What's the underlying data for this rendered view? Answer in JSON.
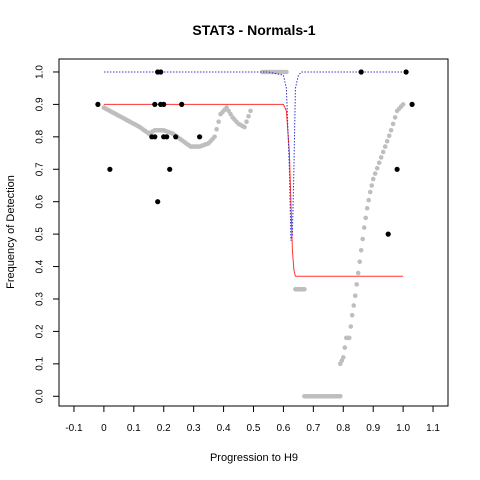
{
  "chart_data": {
    "type": "scatter",
    "title": "STAT3 - Normals-1",
    "xlabel": "Progression to H9",
    "ylabel": "Frequency of Detection",
    "xlim": [
      -0.15,
      1.15
    ],
    "ylim": [
      -0.03,
      1.04
    ],
    "x_ticks": [
      "-0.1",
      "0",
      "0.1",
      "0.2",
      "0.3",
      "0.4",
      "0.5",
      "0.6",
      "0.7",
      "0.8",
      "0.9",
      "1.0",
      "1.1"
    ],
    "y_ticks": [
      "0.0",
      "0.1",
      "0.2",
      "0.3",
      "0.4",
      "0.5",
      "0.6",
      "0.7",
      "0.8",
      "0.9",
      "1.0"
    ],
    "grid": false,
    "legend": "none",
    "colors": {
      "observed": "#000000",
      "smoothed": "#bebebe",
      "fit": "#ff3333",
      "boundary": "#3333cc"
    },
    "series": [
      {
        "kind": "observed-points",
        "points": [
          [
            -0.02,
            0.9
          ],
          [
            0.02,
            0.7
          ],
          [
            0.16,
            0.8
          ],
          [
            0.17,
            0.8
          ],
          [
            0.18,
            0.6
          ],
          [
            0.18,
            1.0
          ],
          [
            0.19,
            1.0
          ],
          [
            0.19,
            0.9
          ],
          [
            0.2,
            0.8
          ],
          [
            0.2,
            0.9
          ],
          [
            0.21,
            0.8
          ],
          [
            0.22,
            0.7
          ],
          [
            0.24,
            0.8
          ],
          [
            0.26,
            0.9
          ],
          [
            0.32,
            0.8
          ],
          [
            0.86,
            1.0
          ],
          [
            0.95,
            0.5
          ],
          [
            0.98,
            0.7
          ],
          [
            1.01,
            1.0
          ],
          [
            1.03,
            0.9
          ],
          [
            0.17,
            0.9
          ]
        ]
      },
      {
        "kind": "smoothed-points",
        "segments": [
          {
            "x": [
              0.0,
              0.04,
              0.08,
              0.12,
              0.15,
              0.17,
              0.2,
              0.23,
              0.26,
              0.29,
              0.32,
              0.35,
              0.37,
              0.39,
              0.41,
              0.43,
              0.45,
              0.47,
              0.49
            ],
            "y": [
              0.89,
              0.87,
              0.85,
              0.83,
              0.81,
              0.82,
              0.82,
              0.81,
              0.79,
              0.77,
              0.77,
              0.78,
              0.8,
              0.87,
              0.89,
              0.86,
              0.84,
              0.83,
              0.88
            ]
          },
          {
            "x": [
              0.53,
              0.55,
              0.57,
              0.59,
              0.61
            ],
            "y": [
              1.0,
              1.0,
              1.0,
              1.0,
              1.0
            ]
          },
          {
            "x": [
              0.64,
              0.65,
              0.66,
              0.67
            ],
            "y": [
              0.33,
              0.33,
              0.33,
              0.33
            ]
          },
          {
            "x": [
              0.67,
              0.69,
              0.71,
              0.73,
              0.75,
              0.77,
              0.79
            ],
            "y": [
              0.0,
              0.0,
              0.0,
              0.0,
              0.0,
              0.0,
              0.0
            ]
          },
          {
            "x": [
              0.79,
              0.8,
              0.81,
              0.82,
              0.83,
              0.84,
              0.85,
              0.86,
              0.87,
              0.88,
              0.89,
              0.9,
              0.92,
              0.94,
              0.96,
              0.98,
              1.0
            ],
            "y": [
              0.1,
              0.12,
              0.18,
              0.18,
              0.25,
              0.31,
              0.38,
              0.45,
              0.52,
              0.58,
              0.63,
              0.67,
              0.72,
              0.77,
              0.82,
              0.88,
              0.9
            ]
          }
        ]
      },
      {
        "kind": "fit-curve",
        "x": [
          0.0,
          0.3,
          0.55,
          0.6,
          0.61,
          0.62,
          0.625,
          0.63,
          0.635,
          0.64,
          0.66,
          0.7,
          0.8,
          1.0
        ],
        "y": [
          0.9,
          0.9,
          0.9,
          0.9,
          0.88,
          0.75,
          0.6,
          0.45,
          0.39,
          0.37,
          0.37,
          0.37,
          0.37,
          0.37
        ]
      },
      {
        "kind": "boundary-curve",
        "x": [
          0.0,
          0.55,
          0.6,
          0.61,
          0.62,
          0.625,
          0.63,
          0.635,
          0.64,
          0.65,
          0.66,
          0.7,
          1.0
        ],
        "y": [
          1.0,
          1.0,
          0.99,
          0.95,
          0.7,
          0.48,
          0.5,
          0.7,
          0.95,
          0.99,
          1.0,
          1.0,
          1.0
        ]
      }
    ]
  }
}
